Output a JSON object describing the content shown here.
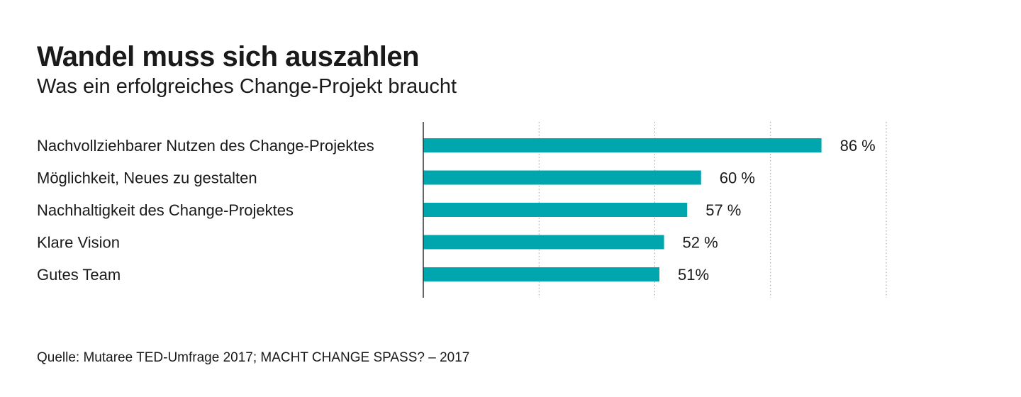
{
  "chart_data": {
    "type": "bar",
    "orientation": "horizontal",
    "title": "Wandel muss sich auszahlen",
    "subtitle": "Was ein erfolgreiches Change-Projekt braucht",
    "categories": [
      "Nachvollziehbarer Nutzen des Change-Projektes",
      "Möglichkeit, Neues zu gestalten",
      "Nachhaltigkeit des Change-Projektes",
      "Klare Vision",
      "Gutes Team"
    ],
    "values": [
      86,
      60,
      57,
      52,
      51
    ],
    "value_labels": [
      "86 %",
      "60 %",
      "57 %",
      "52 %",
      "51%"
    ],
    "xlim": [
      0,
      100
    ],
    "grid": true,
    "bar_color": "#00a6ad",
    "source": "Quelle: Mutaree TED-Umfrage 2017; MACHT CHANGE SPASS? – 2017"
  }
}
